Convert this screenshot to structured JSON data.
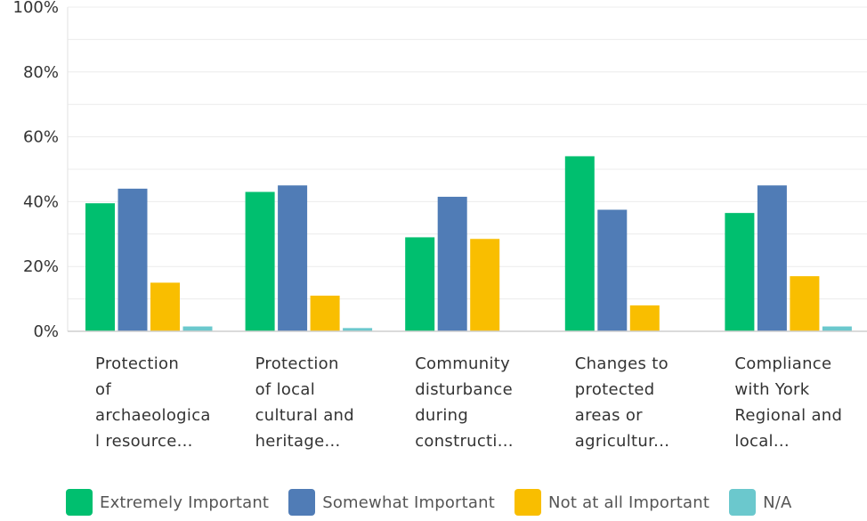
{
  "chart_data": {
    "type": "bar",
    "categories": [
      [
        "Protection",
        "of",
        "archaeologica",
        "l resource..."
      ],
      [
        "Protection",
        "of local",
        "cultural and",
        "heritage..."
      ],
      [
        "Community",
        "disturbance",
        "during",
        "constructi..."
      ],
      [
        "Changes to",
        "protected",
        "areas or",
        "agricultur..."
      ],
      [
        "Compliance",
        "with York",
        "Regional and",
        "local..."
      ]
    ],
    "series": [
      {
        "name": "Extremely Important",
        "color": "#00BF6F",
        "values": [
          39.5,
          43,
          29,
          54,
          36.5
        ]
      },
      {
        "name": "Somewhat Important",
        "color": "#507CB6",
        "values": [
          44,
          45,
          41.5,
          37.5,
          45
        ]
      },
      {
        "name": "Not at all Important",
        "color": "#F9BE00",
        "values": [
          15,
          11,
          28.5,
          8,
          17
        ]
      },
      {
        "name": "N/A",
        "color": "#6BC8CD",
        "values": [
          1.5,
          1,
          0,
          0,
          1.5
        ]
      }
    ],
    "yticks": [
      "0%",
      "20%",
      "40%",
      "60%",
      "80%",
      "100%"
    ],
    "ylim": [
      0,
      100
    ],
    "grid": true,
    "legend": "bottom"
  }
}
